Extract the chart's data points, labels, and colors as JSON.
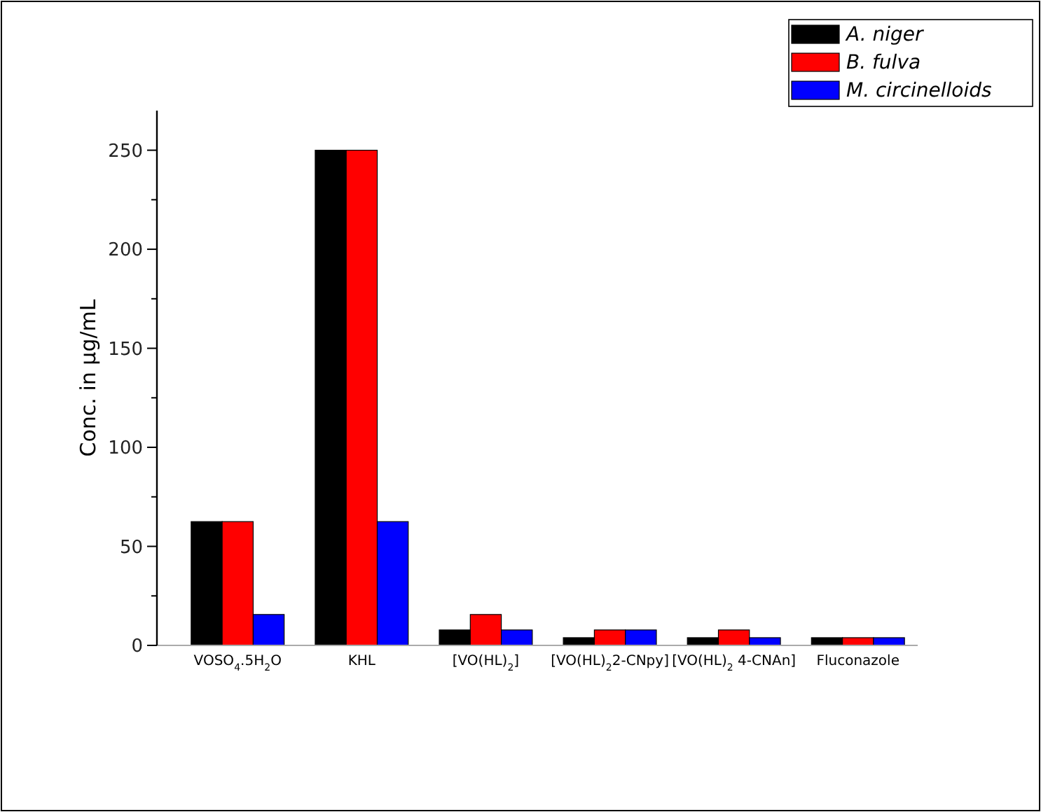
{
  "chart_data": {
    "type": "bar",
    "ylabel": "Conc. in µg/mL",
    "categories": [
      "VOSO$_{4}$.5H$_{2}$O",
      "KHL",
      "[VO(HL)$_{2}$]",
      "[VO(HL)$_{2}$2-CNpy]",
      "[VO(HL)$_{2}$ 4-CNAn]",
      "Fluconazole"
    ],
    "series": [
      {
        "name": "A. niger",
        "color": "#000000",
        "values": [
          62.5,
          250,
          7.8,
          3.9,
          3.9,
          3.9
        ]
      },
      {
        "name": "B. fulva",
        "color": "#ff0000",
        "values": [
          62.5,
          250,
          15.6,
          7.8,
          7.8,
          3.9
        ]
      },
      {
        "name": "M. circinelloids",
        "color": "#0000ff",
        "values": [
          15.6,
          62.5,
          7.8,
          7.8,
          3.9,
          3.9
        ]
      }
    ],
    "ylim": [
      0,
      270
    ],
    "yticks": [
      0,
      {
        "value": 25,
        "label": null
      },
      50,
      {
        "value": 75,
        "label": null
      },
      100,
      {
        "value": 125,
        "label": null
      },
      150,
      {
        "value": 175,
        "label": null
      },
      200,
      {
        "value": 225,
        "label": null
      },
      250
    ],
    "legend": "top right",
    "grid": false
  }
}
